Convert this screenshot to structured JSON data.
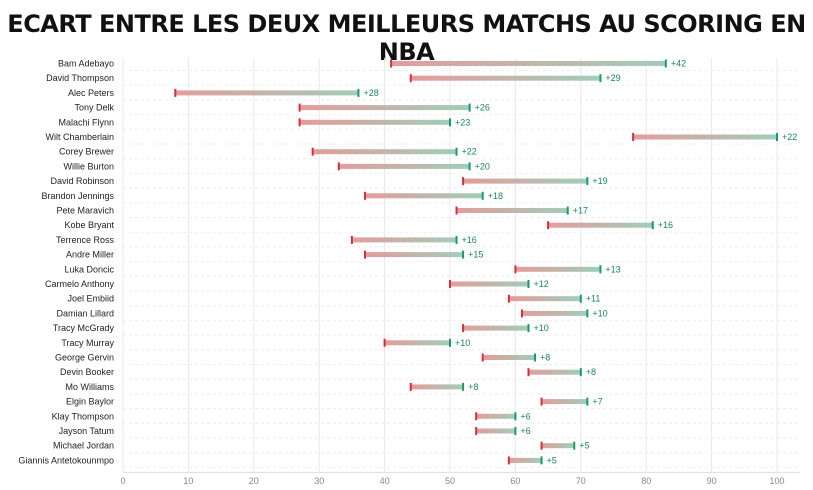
{
  "title": "ECART ENTRE LES DEUX MEILLEURS MATCHS AU SCORING EN NBA",
  "colors": {
    "low": "#d62f3a",
    "high": "#1a9a6c",
    "text_gain": "#1a8a55",
    "grid": "#e8e8e8"
  },
  "chart_data": {
    "type": "dumbbell",
    "title": "ECART ENTRE LES DEUX MEILLEURS MATCHS AU SCORING EN NBA",
    "xlim": [
      0,
      100
    ],
    "xticks": [
      "0",
      "10",
      "20",
      "30",
      "40",
      "50",
      "60",
      "70",
      "80",
      "90",
      "100"
    ],
    "grid": true,
    "rows": [
      {
        "name": "Bam Adebayo",
        "start": 41,
        "end": 83,
        "label": "+42"
      },
      {
        "name": "David Thompson",
        "start": 44,
        "end": 73,
        "label": "+29"
      },
      {
        "name": "Alec Peters",
        "start": 8,
        "end": 36,
        "label": "+28"
      },
      {
        "name": "Tony Delk",
        "start": 27,
        "end": 53,
        "label": "+26"
      },
      {
        "name": "Malachi Flynn",
        "start": 27,
        "end": 50,
        "label": "+23"
      },
      {
        "name": "Wilt Chamberlain",
        "start": 78,
        "end": 100,
        "label": "+22"
      },
      {
        "name": "Corey Brewer",
        "start": 29,
        "end": 51,
        "label": "+22"
      },
      {
        "name": "Willie Burton",
        "start": 33,
        "end": 53,
        "label": "+20"
      },
      {
        "name": "David Robinson",
        "start": 52,
        "end": 71,
        "label": "+19"
      },
      {
        "name": "Brandon Jennings",
        "start": 37,
        "end": 55,
        "label": "+18"
      },
      {
        "name": "Pete Maravich",
        "start": 51,
        "end": 68,
        "label": "+17"
      },
      {
        "name": "Kobe Bryant",
        "start": 65,
        "end": 81,
        "label": "+16"
      },
      {
        "name": "Terrence Ross",
        "start": 35,
        "end": 51,
        "label": "+16"
      },
      {
        "name": "Andre Miller",
        "start": 37,
        "end": 52,
        "label": "+15"
      },
      {
        "name": "Luka Doncic",
        "start": 60,
        "end": 73,
        "label": "+13"
      },
      {
        "name": "Carmelo Anthony",
        "start": 50,
        "end": 62,
        "label": "+12"
      },
      {
        "name": "Joel Embiid",
        "start": 59,
        "end": 70,
        "label": "+11"
      },
      {
        "name": "Damian Lillard",
        "start": 61,
        "end": 71,
        "label": "+10"
      },
      {
        "name": "Tracy McGrady",
        "start": 52,
        "end": 62,
        "label": "+10"
      },
      {
        "name": "Tracy Murray",
        "start": 40,
        "end": 50,
        "label": "+10"
      },
      {
        "name": "George Gervin",
        "start": 55,
        "end": 63,
        "label": "+8"
      },
      {
        "name": "Devin Booker",
        "start": 62,
        "end": 70,
        "label": "+8"
      },
      {
        "name": "Mo Williams",
        "start": 44,
        "end": 52,
        "label": "+8"
      },
      {
        "name": "Elgin Baylor",
        "start": 64,
        "end": 71,
        "label": "+7"
      },
      {
        "name": "Klay Thompson",
        "start": 54,
        "end": 60,
        "label": "+6"
      },
      {
        "name": "Jayson Tatum",
        "start": 54,
        "end": 60,
        "label": "+6"
      },
      {
        "name": "Michael Jordan",
        "start": 64,
        "end": 69,
        "label": "+5"
      },
      {
        "name": "Giannis Antetokounmpo",
        "start": 59,
        "end": 64,
        "label": "+5"
      }
    ]
  }
}
